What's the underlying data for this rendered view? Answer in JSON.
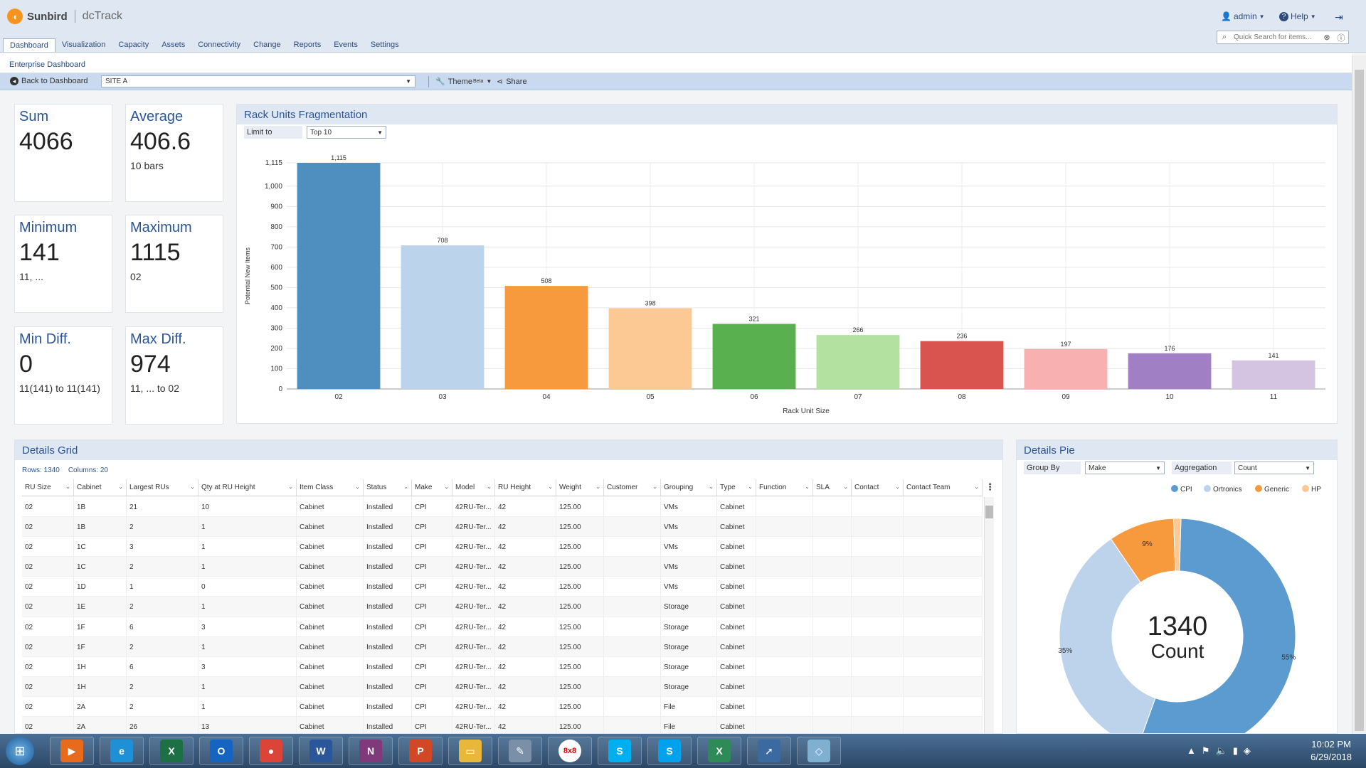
{
  "header": {
    "brand": "Sunbird",
    "product": "dcTrack",
    "user": "admin",
    "help": "Help",
    "search_placeholder": "Quick Search for items...",
    "nav": [
      "Dashboard",
      "Visualization",
      "Capacity",
      "Assets",
      "Connectivity",
      "Change",
      "Reports",
      "Events",
      "Settings"
    ]
  },
  "subnav": {
    "breadcrumb": "Enterprise Dashboard"
  },
  "toolbar": {
    "back": "Back to Dashboard",
    "site": "SITE A",
    "theme": "Theme",
    "theme_badge": "Beta",
    "share": "Share"
  },
  "stats": [
    {
      "title": "Sum",
      "value": "4066",
      "sub": ""
    },
    {
      "title": "Average",
      "value": "406.6",
      "sub": "10 bars"
    },
    {
      "title": "Minimum",
      "value": "141",
      "sub": "11, ..."
    },
    {
      "title": "Maximum",
      "value": "1115",
      "sub": "02"
    },
    {
      "title": "Min Diff.",
      "value": "0",
      "sub": "11(141) to 11(141)"
    },
    {
      "title": "Max Diff.",
      "value": "974",
      "sub": "11, ... to 02"
    }
  ],
  "bar_panel": {
    "title": "Rack Units Fragmentation",
    "limit_label": "Limit to",
    "limit_value": "Top 10"
  },
  "chart_data": [
    {
      "type": "bar",
      "title": "Rack Units Fragmentation",
      "xlabel": "Rack Unit Size",
      "ylabel": "Potential New Items",
      "categories": [
        "02",
        "03",
        "04",
        "05",
        "06",
        "07",
        "08",
        "09",
        "10",
        "11"
      ],
      "values": [
        1115,
        708,
        508,
        398,
        321,
        266,
        236,
        197,
        176,
        141
      ],
      "value_labels": [
        "1,115",
        "708",
        "508",
        "398",
        "321",
        "266",
        "236",
        "197",
        "176",
        "141"
      ],
      "colors": [
        "#4f8fc0",
        "#bcd3ec",
        "#f79a3e",
        "#fcc995",
        "#58b04f",
        "#b3e1a0",
        "#d9534f",
        "#f8b0b0",
        "#a07fc4",
        "#d4c4e2"
      ],
      "yticks": [
        "0",
        "100",
        "200",
        "300",
        "400",
        "500",
        "600",
        "700",
        "800",
        "900",
        "1,000",
        "1,115"
      ],
      "ytick_values": [
        0,
        100,
        200,
        300,
        400,
        500,
        600,
        700,
        800,
        900,
        1000,
        1115
      ],
      "ylim": [
        0,
        1115
      ],
      "grid": true
    },
    {
      "type": "pie",
      "title": "Details Pie",
      "center_value": "1340",
      "center_label": "Count",
      "legend": [
        "CPI",
        "Ortronics",
        "Generic",
        "HP"
      ],
      "colors": [
        "#5b9bd0",
        "#bdd3ec",
        "#f79a3e",
        "#fcc995"
      ],
      "values": [
        55,
        35,
        9,
        1
      ],
      "value_labels": [
        "55%",
        "35%",
        "9%",
        ""
      ],
      "legend_position": "top-right"
    }
  ],
  "pie_panel": {
    "title": "Details Pie",
    "group_label": "Group By",
    "group_value": "Make",
    "agg_label": "Aggregation",
    "agg_value": "Count"
  },
  "grid": {
    "title": "Details Grid",
    "rows_label": "Rows: 1340",
    "cols_label": "Columns: 20",
    "columns": [
      "RU Size",
      "Cabinet",
      "Largest RUs",
      "Qty at RU Height",
      "Item Class",
      "Status",
      "Make",
      "Model",
      "RU Height",
      "Weight",
      "Customer",
      "Grouping",
      "Type",
      "Function",
      "SLA",
      "Contact",
      "Contact Team"
    ],
    "rows": [
      [
        "02",
        "1B",
        "21",
        "10",
        "Cabinet",
        "Installed",
        "CPI",
        "42RU-Ter...",
        "42",
        "125.00",
        "",
        "VMs",
        "Cabinet",
        "",
        "",
        "",
        ""
      ],
      [
        "02",
        "1B",
        "2",
        "1",
        "Cabinet",
        "Installed",
        "CPI",
        "42RU-Ter...",
        "42",
        "125.00",
        "",
        "VMs",
        "Cabinet",
        "",
        "",
        "",
        ""
      ],
      [
        "02",
        "1C",
        "3",
        "1",
        "Cabinet",
        "Installed",
        "CPI",
        "42RU-Ter...",
        "42",
        "125.00",
        "",
        "VMs",
        "Cabinet",
        "",
        "",
        "",
        ""
      ],
      [
        "02",
        "1C",
        "2",
        "1",
        "Cabinet",
        "Installed",
        "CPI",
        "42RU-Ter...",
        "42",
        "125.00",
        "",
        "VMs",
        "Cabinet",
        "",
        "",
        "",
        ""
      ],
      [
        "02",
        "1D",
        "1",
        "0",
        "Cabinet",
        "Installed",
        "CPI",
        "42RU-Ter...",
        "42",
        "125.00",
        "",
        "VMs",
        "Cabinet",
        "",
        "",
        "",
        ""
      ],
      [
        "02",
        "1E",
        "2",
        "1",
        "Cabinet",
        "Installed",
        "CPI",
        "42RU-Ter...",
        "42",
        "125.00",
        "",
        "Storage",
        "Cabinet",
        "",
        "",
        "",
        ""
      ],
      [
        "02",
        "1F",
        "6",
        "3",
        "Cabinet",
        "Installed",
        "CPI",
        "42RU-Ter...",
        "42",
        "125.00",
        "",
        "Storage",
        "Cabinet",
        "",
        "",
        "",
        ""
      ],
      [
        "02",
        "1F",
        "2",
        "1",
        "Cabinet",
        "Installed",
        "CPI",
        "42RU-Ter...",
        "42",
        "125.00",
        "",
        "Storage",
        "Cabinet",
        "",
        "",
        "",
        ""
      ],
      [
        "02",
        "1H",
        "6",
        "3",
        "Cabinet",
        "Installed",
        "CPI",
        "42RU-Ter...",
        "42",
        "125.00",
        "",
        "Storage",
        "Cabinet",
        "",
        "",
        "",
        ""
      ],
      [
        "02",
        "1H",
        "2",
        "1",
        "Cabinet",
        "Installed",
        "CPI",
        "42RU-Ter...",
        "42",
        "125.00",
        "",
        "Storage",
        "Cabinet",
        "",
        "",
        "",
        ""
      ],
      [
        "02",
        "2A",
        "2",
        "1",
        "Cabinet",
        "Installed",
        "CPI",
        "42RU-Ter...",
        "42",
        "125.00",
        "",
        "File",
        "Cabinet",
        "",
        "",
        "",
        ""
      ],
      [
        "02",
        "2A",
        "26",
        "13",
        "Cabinet",
        "Installed",
        "CPI",
        "42RU-Ter...",
        "42",
        "125.00",
        "",
        "File",
        "Cabinet",
        "",
        "",
        "",
        ""
      ]
    ]
  },
  "taskbar": {
    "apps": [
      {
        "name": "media-player-icon",
        "glyph": "▶",
        "color": "#e86a1d"
      },
      {
        "name": "internet-explorer-icon",
        "glyph": "e",
        "color": "#1e90d6"
      },
      {
        "name": "excel-icon",
        "glyph": "X",
        "color": "#1d7044"
      },
      {
        "name": "outlook-icon",
        "glyph": "O",
        "color": "#1565c0"
      },
      {
        "name": "chrome-icon",
        "glyph": "●",
        "color": "#db4437"
      },
      {
        "name": "word-icon",
        "glyph": "W",
        "color": "#2b579a"
      },
      {
        "name": "onenote-icon",
        "glyph": "N",
        "color": "#80397b"
      },
      {
        "name": "powerpoint-icon",
        "glyph": "P",
        "color": "#d24726"
      },
      {
        "name": "file-explorer-icon",
        "glyph": "▭",
        "color": "#e8b83a"
      },
      {
        "name": "notepad-icon",
        "glyph": "✎",
        "color": "#7a8fa8"
      },
      {
        "name": "8x8-icon",
        "glyph": "8x8",
        "color": "#e02020"
      },
      {
        "name": "skype-icon",
        "glyph": "S",
        "color": "#00aff0"
      },
      {
        "name": "skype-business-icon",
        "glyph": "S",
        "color": "#00a2ed"
      },
      {
        "name": "excel-alt-icon",
        "glyph": "X",
        "color": "#2e8b57"
      },
      {
        "name": "remote-desktop-icon",
        "glyph": "➚",
        "color": "#3b6aa0"
      },
      {
        "name": "eraser-app-icon",
        "glyph": "◇",
        "color": "#7fb0d0"
      }
    ],
    "time": "10:02 PM",
    "date": "6/29/2018"
  }
}
